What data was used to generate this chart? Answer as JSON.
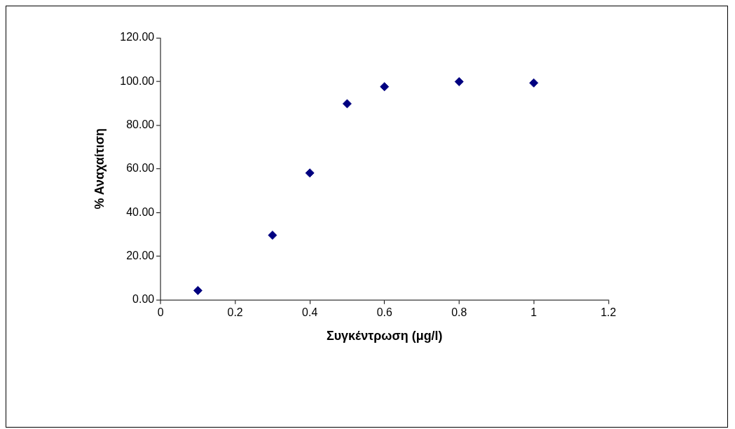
{
  "chart_data": {
    "type": "scatter",
    "xlabel": "Συγκέντρωση (μg/l)",
    "ylabel": "% Αναχαίτιση",
    "x": [
      0.1,
      0.3,
      0.4,
      0.5,
      0.6,
      0.8,
      1.0
    ],
    "series": [
      {
        "color": "#000080",
        "values": [
          4.3,
          29.6,
          58.1,
          89.8,
          97.6,
          99.9,
          99.3
        ]
      }
    ],
    "xlim": [
      0,
      1.2
    ],
    "xticks": [
      0,
      0.2,
      0.4,
      0.6,
      0.8,
      1,
      1.2
    ],
    "ylim": [
      0,
      120
    ],
    "yticks": [
      {
        "value": 0,
        "label": "0.00"
      },
      {
        "value": 20,
        "label": "20.00"
      },
      {
        "value": 40,
        "label": "40.00"
      },
      {
        "value": 60,
        "label": "60.00"
      },
      {
        "value": 80,
        "label": "80.00"
      },
      {
        "value": 100,
        "label": "100.00"
      },
      {
        "value": 120,
        "label": "120.00"
      }
    ],
    "grid": false,
    "legend": false,
    "marker": "diamond"
  }
}
